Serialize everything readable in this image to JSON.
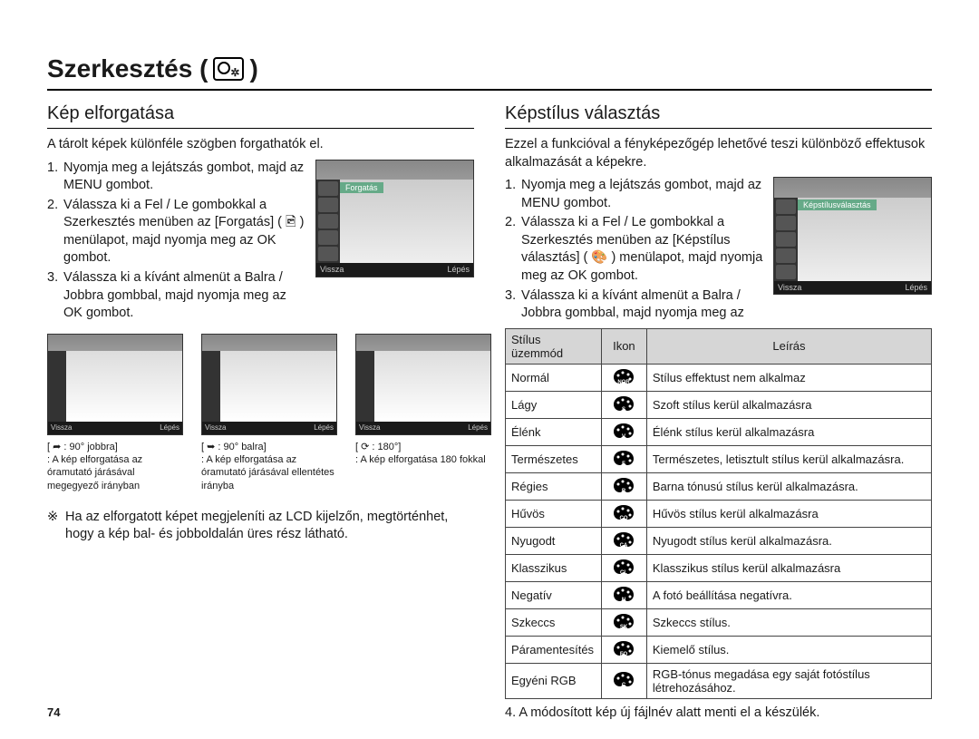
{
  "page_title": "Szerkesztés (",
  "page_title_close": ")",
  "page_number": "74",
  "left": {
    "section_title": "Kép elforgatása",
    "intro": "A tárolt képek különféle szögben forgathatók el.",
    "steps": [
      "Nyomja meg a lejátszás gombot, majd az MENU gombot.",
      "Válassza ki a Fel / Le gombokkal a Szerkesztés menüben az [Forgatás] ( 🖻 ) menülapot, majd nyomja meg az OK gombot.",
      "Válassza ki a kívánt almenüt a Balra / Jobbra gombbal, majd nyomja meg az OK gombot."
    ],
    "screenshot": {
      "topbar_label": "Forgatás",
      "foot_left": "Vissza",
      "foot_right": "Lépés"
    },
    "thumbs": [
      {
        "foot_left": "Vissza",
        "foot_right": "Lépés",
        "cap_head": "[ ➦  : 90° jobbra]",
        "cap_body": ": A kép elforgatása az óramutató járásával megegyező irányban"
      },
      {
        "foot_left": "Vissza",
        "foot_right": "Lépés",
        "cap_head": "[ ➥  : 90° balra]",
        "cap_body": ": A kép elforgatása az óramutató járásával ellentétes irányba"
      },
      {
        "foot_left": "Vissza",
        "foot_right": "Lépés",
        "cap_head": "[ ⟳  : 180°]",
        "cap_body": ": A kép elforgatása 180 fokkal"
      }
    ],
    "note": "Ha az elforgatott képet megjeleníti az LCD kijelzőn, megtörténhet, hogy a kép bal- és jobboldalán üres rész látható.",
    "note_symbol": "※"
  },
  "right": {
    "section_title": "Képstílus választás",
    "intro": "Ezzel a funkcióval a fényképezőgép lehetővé teszi különböző effektusok alkalmazását a képekre.",
    "steps": [
      "Nyomja meg a lejátszás gombot, majd az MENU gombot.",
      "Válassza ki a Fel / Le gombokkal a Szerkesztés menüben az [Képstílus választás] ( 🎨 ) menülapot, majd nyomja meg az OK gombot.",
      "Válassza ki a kívánt almenüt a Balra / Jobbra gombbal, majd nyomja meg az"
    ],
    "screenshot": {
      "topbar_label": "Képstílusválasztás",
      "foot_left": "Vissza",
      "foot_right": "Lépés"
    },
    "table": {
      "headers": [
        "Stílus üzemmód",
        "Ikon",
        "Leírás"
      ],
      "rows": [
        {
          "mode": "Normál",
          "icon_sub": "NOR",
          "desc": "Stílus effektust nem alkalmaz"
        },
        {
          "mode": "Lágy",
          "icon_sub": "S",
          "desc": "Szoft stílus kerül alkalmazásra"
        },
        {
          "mode": "Élénk",
          "icon_sub": "V",
          "desc": "Élénk stílus kerül alkalmazásra"
        },
        {
          "mode": "Természetes",
          "icon_sub": "F",
          "desc": "Természetes, letisztult stílus kerül alkalmazásra."
        },
        {
          "mode": "Régies",
          "icon_sub": "R",
          "desc": "Barna tónusú stílus kerül alkalmazásra."
        },
        {
          "mode": "Hűvös",
          "icon_sub": "CO",
          "desc": "Hűvös stílus kerül alkalmazásra"
        },
        {
          "mode": "Nyugodt",
          "icon_sub": "CA",
          "desc": "Nyugodt stílus kerül alkalmazásra."
        },
        {
          "mode": "Klasszikus",
          "icon_sub": "CL",
          "desc": "Klasszikus stílus kerül alkalmazásra"
        },
        {
          "mode": "Negatív",
          "icon_sub": "N",
          "desc": "A fotó beállítása negatívra."
        },
        {
          "mode": "Szkeccs",
          "icon_sub": "SK",
          "desc": "Szkeccs stílus."
        },
        {
          "mode": "Páramentesítés",
          "icon_sub": "FO",
          "desc": "Kiemelő stílus."
        },
        {
          "mode": "Egyéni RGB",
          "icon_sub": "C",
          "desc": "RGB-tónus megadása egy saját fotóstílus létrehozásához."
        }
      ]
    },
    "footer_step": "4. A módosított kép új fájlnév alatt menti el a készülék."
  }
}
